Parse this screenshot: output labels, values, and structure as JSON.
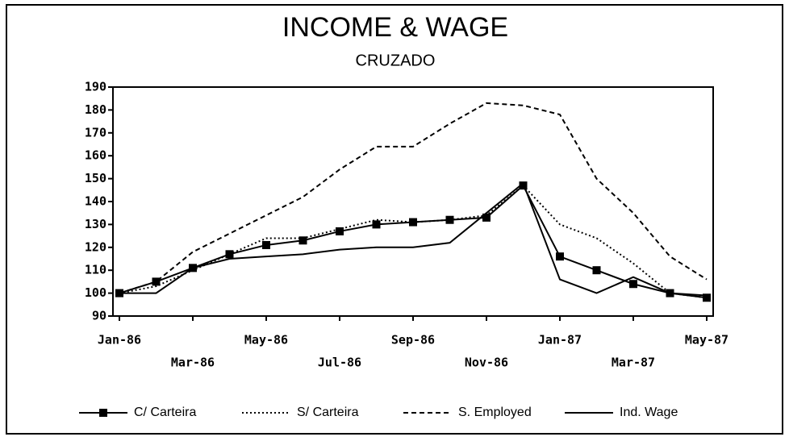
{
  "chart_data": {
    "type": "line",
    "title": "INCOME & WAGE",
    "subtitle": "CRUZADO",
    "categories": [
      "Jan-86",
      null,
      "Mar-86",
      null,
      "May-86",
      null,
      "Jul-86",
      null,
      "Sep-86",
      null,
      "Nov-86",
      null,
      "Jan-87",
      null,
      "Mar-87",
      null,
      "May-87"
    ],
    "ylim": [
      90,
      190
    ],
    "yticks": [
      90,
      100,
      110,
      120,
      130,
      140,
      150,
      160,
      170,
      180,
      190
    ],
    "series": [
      {
        "name": "C/ Carteira",
        "color": "#000000",
        "dash": "solid",
        "marker": "square",
        "values": [
          100,
          105,
          111,
          117,
          121,
          123,
          127,
          130,
          131,
          132,
          133,
          147,
          116,
          110,
          104,
          100,
          98
        ]
      },
      {
        "name": "S/ Carteira",
        "color": "#000000",
        "dash": "dotted",
        "values": [
          100,
          103,
          110,
          117,
          124,
          124,
          128,
          132,
          131,
          132,
          134,
          147,
          130,
          124,
          113,
          100,
          98
        ]
      },
      {
        "name": "S. Employed",
        "color": "#000000",
        "dash": "dashed",
        "values": [
          100,
          105,
          118,
          126,
          134,
          142,
          154,
          164,
          164,
          174,
          183,
          182,
          178,
          150,
          135,
          116,
          106
        ]
      },
      {
        "name": "Ind. Wage",
        "color": "#000000",
        "dash": "solid",
        "values": [
          100,
          100,
          111,
          115,
          116,
          117,
          119,
          120,
          120,
          122,
          135,
          148,
          106,
          100,
          107,
          100,
          99
        ]
      }
    ]
  }
}
